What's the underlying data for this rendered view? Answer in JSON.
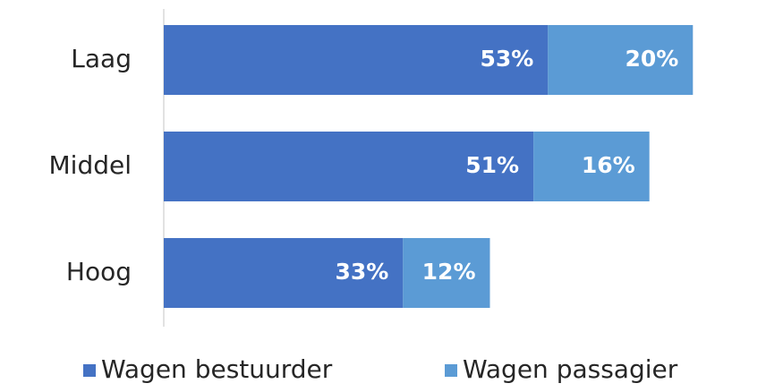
{
  "chart_data": {
    "type": "stacked-bar-horizontal",
    "categories": [
      "Laag",
      "Middel",
      "Hoog"
    ],
    "series": [
      {
        "name": "Wagen bestuurder",
        "color": "#4472c4",
        "values": [
          53,
          51,
          33
        ],
        "value_labels": [
          "53%",
          "51%",
          "33%"
        ]
      },
      {
        "name": "Wagen passagier",
        "color": "#5b9bd5",
        "values": [
          20,
          16,
          12
        ],
        "value_labels": [
          "20%",
          "16%",
          "12%"
        ]
      }
    ],
    "legend": "bottom"
  }
}
